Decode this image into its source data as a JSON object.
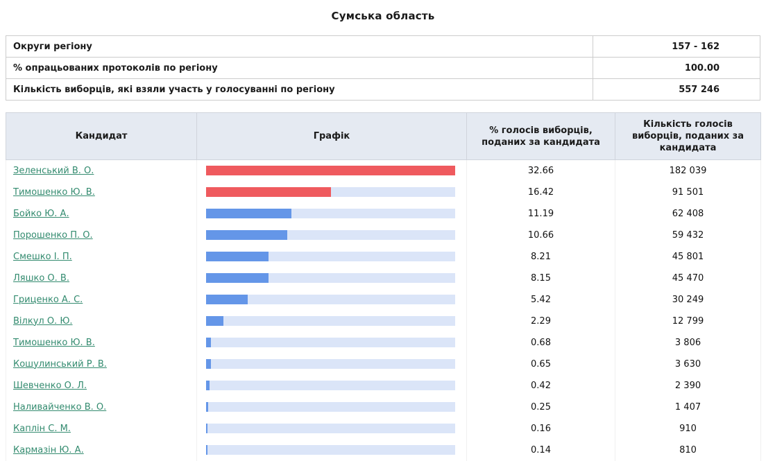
{
  "page": {
    "title": "Сумська область"
  },
  "ui_colors": {
    "header_bg": "#e5eaf2",
    "link": "#338b6f",
    "bar_red": "#ef5a5e",
    "bar_blue": "#6496e8",
    "bar_track": "#dbe5f8"
  },
  "summary": {
    "rows": [
      {
        "label": "Округи регіону",
        "value": "157 - 162"
      },
      {
        "label": "% опрацьованих протоколів по регіону",
        "value": "100.00"
      },
      {
        "label": "Кількість виборців, які взяли участь у голосуванні по регіону",
        "value": "557 246"
      }
    ]
  },
  "results": {
    "headers": {
      "candidate": "Кандидат",
      "graph": "Графік",
      "percent": "% голосів виборців, поданих за кандидата",
      "votes": "Кількість голосів виборців, поданих за кандидата"
    },
    "max_percent": 32.66,
    "rows": [
      {
        "candidate": "Зеленський В. О.",
        "percent": "32.66",
        "votes": "182 039",
        "color": "red"
      },
      {
        "candidate": "Тимошенко Ю. В.",
        "percent": "16.42",
        "votes": "91 501",
        "color": "red"
      },
      {
        "candidate": "Бойко Ю. А.",
        "percent": "11.19",
        "votes": "62 408",
        "color": "blue"
      },
      {
        "candidate": "Порошенко П. О.",
        "percent": "10.66",
        "votes": "59 432",
        "color": "blue"
      },
      {
        "candidate": "Смешко І. П.",
        "percent": "8.21",
        "votes": "45 801",
        "color": "blue"
      },
      {
        "candidate": "Ляшко О. В.",
        "percent": "8.15",
        "votes": "45 470",
        "color": "blue"
      },
      {
        "candidate": "Гриценко А. С.",
        "percent": "5.42",
        "votes": "30 249",
        "color": "blue"
      },
      {
        "candidate": "Вілкул О. Ю.",
        "percent": "2.29",
        "votes": "12 799",
        "color": "blue"
      },
      {
        "candidate": "Тимошенко Ю. В.",
        "percent": "0.68",
        "votes": "3 806",
        "color": "blue"
      },
      {
        "candidate": "Кошулинський Р. В.",
        "percent": "0.65",
        "votes": "3 630",
        "color": "blue"
      },
      {
        "candidate": "Шевченко О. Л.",
        "percent": "0.42",
        "votes": "2 390",
        "color": "blue"
      },
      {
        "candidate": "Наливайченко В. О.",
        "percent": "0.25",
        "votes": "1 407",
        "color": "blue"
      },
      {
        "candidate": "Каплін С. М.",
        "percent": "0.16",
        "votes": "910",
        "color": "blue"
      },
      {
        "candidate": "Кармазін Ю. А.",
        "percent": "0.14",
        "votes": "810",
        "color": "blue"
      }
    ]
  }
}
